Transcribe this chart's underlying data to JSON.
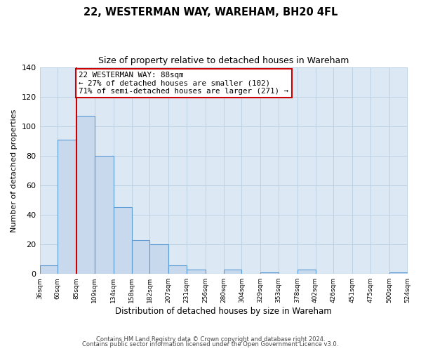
{
  "title1": "22, WESTERMAN WAY, WAREHAM, BH20 4FL",
  "title2": "Size of property relative to detached houses in Wareham",
  "xlabel": "Distribution of detached houses by size in Wareham",
  "ylabel": "Number of detached properties",
  "bar_left_edges": [
    36,
    60,
    85,
    109,
    134,
    158,
    182,
    207,
    231,
    256,
    280,
    304,
    329,
    353,
    378,
    402,
    426,
    451,
    475,
    500
  ],
  "bar_heights": [
    6,
    91,
    107,
    80,
    45,
    23,
    20,
    6,
    3,
    0,
    3,
    0,
    1,
    0,
    3,
    0,
    0,
    0,
    0,
    1
  ],
  "bar_color": "#c9d9ed",
  "bar_edge_color": "#5b9bd5",
  "x_tick_labels": [
    "36sqm",
    "60sqm",
    "85sqm",
    "109sqm",
    "134sqm",
    "158sqm",
    "182sqm",
    "207sqm",
    "231sqm",
    "256sqm",
    "280sqm",
    "304sqm",
    "329sqm",
    "353sqm",
    "378sqm",
    "402sqm",
    "426sqm",
    "451sqm",
    "475sqm",
    "500sqm",
    "524sqm"
  ],
  "x_tick_positions": [
    36,
    60,
    85,
    109,
    134,
    158,
    182,
    207,
    231,
    256,
    280,
    304,
    329,
    353,
    378,
    402,
    426,
    451,
    475,
    500,
    524
  ],
  "ylim": [
    0,
    140
  ],
  "yticks": [
    0,
    20,
    40,
    60,
    80,
    100,
    120,
    140
  ],
  "xlim_min": 36,
  "xlim_max": 524,
  "vline_x": 85,
  "vline_color": "#cc0000",
  "annotation_text": "22 WESTERMAN WAY: 88sqm\n← 27% of detached houses are smaller (102)\n71% of semi-detached houses are larger (271) →",
  "annotation_box_facecolor": "#ffffff",
  "annotation_box_edgecolor": "#cc0000",
  "grid_color": "#b8cfe0",
  "plot_bg_color": "#dce9f5",
  "fig_bg_color": "#ffffff",
  "footer1": "Contains HM Land Registry data © Crown copyright and database right 2024.",
  "footer2": "Contains public sector information licensed under the Open Government Licence v3.0."
}
